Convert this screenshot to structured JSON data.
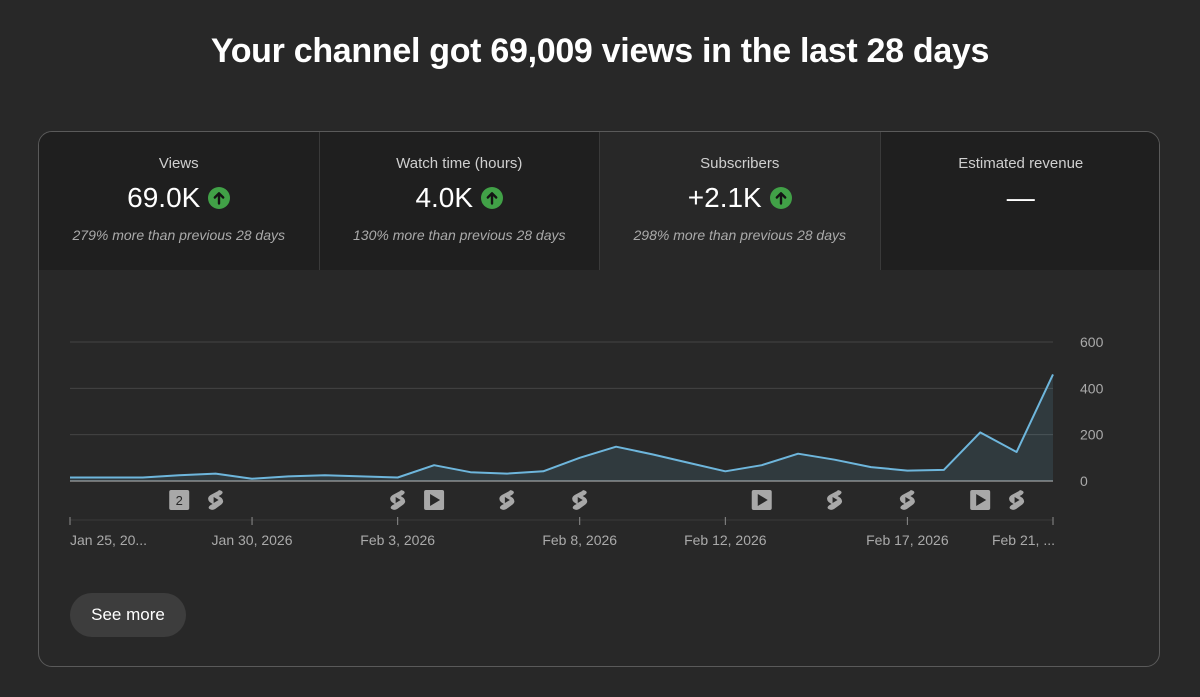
{
  "headline": "Your channel got 69,009 views in the last 28 days",
  "metrics": [
    {
      "label": "Views",
      "value": "69.0K",
      "trend": "up",
      "comparison": "279% more than previous 28 days"
    },
    {
      "label": "Watch time (hours)",
      "value": "4.0K",
      "trend": "up",
      "comparison": "130% more than previous 28 days"
    },
    {
      "label": "Subscribers",
      "value": "+2.1K",
      "trend": "up",
      "comparison": "298% more than previous 28 days"
    },
    {
      "label": "Estimated revenue",
      "value": "—",
      "trend": "none",
      "comparison": ""
    }
  ],
  "selected_metric": "Subscribers",
  "see_more_label": "See more",
  "colors": {
    "line": "#6eb6dc",
    "up_badge": "#41a147",
    "background": "#282828"
  },
  "chart_data": {
    "type": "area",
    "title": "",
    "ylim": [
      0,
      600
    ],
    "y_ticks": [
      0,
      200,
      400,
      600
    ],
    "y_tick_labels": [
      "0",
      "200",
      "400",
      "600"
    ],
    "x": [
      1,
      2,
      3,
      4,
      5,
      6,
      7,
      8,
      9,
      10,
      11,
      12,
      13,
      14,
      15,
      16,
      17,
      18,
      19,
      20,
      21,
      22,
      23,
      24,
      25,
      26,
      27,
      28
    ],
    "values": [
      15,
      15,
      15,
      25,
      32,
      10,
      20,
      25,
      20,
      15,
      68,
      38,
      32,
      42,
      100,
      148,
      115,
      78,
      42,
      68,
      118,
      92,
      60,
      45,
      48,
      210,
      125,
      460
    ],
    "x_ticks": [
      {
        "x": 1,
        "label": "Jan 25, 20..."
      },
      {
        "x": 6,
        "label": "Jan 30, 2026"
      },
      {
        "x": 10,
        "label": "Feb 3, 2026"
      },
      {
        "x": 15,
        "label": "Feb 8, 2026"
      },
      {
        "x": 19,
        "label": "Feb 12, 2026"
      },
      {
        "x": 24,
        "label": "Feb 17, 2026"
      },
      {
        "x": 28,
        "label": "Feb 21, ..."
      }
    ],
    "upload_markers": [
      {
        "x": 4,
        "kind": "count",
        "label": "2"
      },
      {
        "x": 5,
        "kind": "short"
      },
      {
        "x": 10,
        "kind": "short"
      },
      {
        "x": 11,
        "kind": "video"
      },
      {
        "x": 13,
        "kind": "short"
      },
      {
        "x": 15,
        "kind": "short"
      },
      {
        "x": 20,
        "kind": "video"
      },
      {
        "x": 22,
        "kind": "short"
      },
      {
        "x": 24,
        "kind": "short"
      },
      {
        "x": 26,
        "kind": "video"
      },
      {
        "x": 27,
        "kind": "short"
      }
    ]
  }
}
